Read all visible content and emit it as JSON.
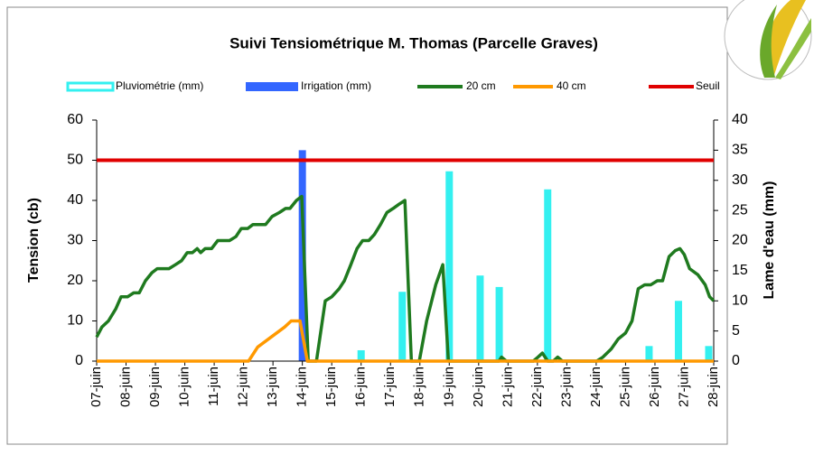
{
  "chart_data": {
    "type": "combo",
    "title": "Suivi Tensiométrique M. Thomas (Parcelle Graves)",
    "y_label": "Tension (cb)",
    "y2_label": "Lame d'eau (mm)",
    "xlim": [
      0,
      21
    ],
    "xticks": [
      {
        "value": 0,
        "label": "07-juin"
      },
      {
        "value": 1,
        "label": "08-juin"
      },
      {
        "value": 2,
        "label": "09-juin"
      },
      {
        "value": 3,
        "label": "10-juin"
      },
      {
        "value": 4,
        "label": "11-juin"
      },
      {
        "value": 5,
        "label": "12-juin"
      },
      {
        "value": 6,
        "label": "13-juin"
      },
      {
        "value": 7,
        "label": "14-juin"
      },
      {
        "value": 8,
        "label": "15-juin"
      },
      {
        "value": 9,
        "label": "16-juin"
      },
      {
        "value": 10,
        "label": "17-juin"
      },
      {
        "value": 11,
        "label": "18-juin"
      },
      {
        "value": 12,
        "label": "19-juin"
      },
      {
        "value": 13,
        "label": "20-juin"
      },
      {
        "value": 14,
        "label": "21-juin"
      },
      {
        "value": 15,
        "label": "22-juin"
      },
      {
        "value": 16,
        "label": "23-juin"
      },
      {
        "value": 17,
        "label": "24-juin"
      },
      {
        "value": 18,
        "label": "25-juin"
      },
      {
        "value": 19,
        "label": "26-juin"
      },
      {
        "value": 20,
        "label": "27-juin"
      },
      {
        "value": 21,
        "label": "28-juin"
      }
    ],
    "ylim": [
      0,
      60
    ],
    "yticks": [
      0,
      10,
      20,
      30,
      40,
      50,
      60
    ],
    "y2lim": [
      0,
      40
    ],
    "y2ticks": [
      0,
      5,
      10,
      15,
      20,
      25,
      30,
      35,
      40
    ],
    "grid": false,
    "series": [
      {
        "name": "Pluviométrie (mm)",
        "type": "bar",
        "axis": "y2",
        "color": "#33f0f0",
        "x": [
          9,
          10.4,
          12,
          13.05,
          13.7,
          15.35,
          18.8,
          19.8,
          20.83
        ],
        "values": [
          1.8,
          11.5,
          31.5,
          14.2,
          12.3,
          28.5,
          2.5,
          10,
          2.5
        ]
      },
      {
        "name": "Irrigation (mm)",
        "type": "bar",
        "axis": "y2",
        "color": "#3366ff",
        "x": [
          7
        ],
        "values": [
          35
        ]
      },
      {
        "name": "20 cm",
        "type": "line",
        "color": "#1f7a1f",
        "x": [
          0,
          0.18,
          0.4,
          0.65,
          0.83,
          1.05,
          1.26,
          1.45,
          1.66,
          1.88,
          2.06,
          2.28,
          2.46,
          2.68,
          2.89,
          3.08,
          3.26,
          3.42,
          3.54,
          3.69,
          3.91,
          4.12,
          4.31,
          4.52,
          4.74,
          4.92,
          5.14,
          5.32,
          5.54,
          5.75,
          5.97,
          6.22,
          6.43,
          6.58,
          6.8,
          6.98,
          7.2,
          7.48,
          7.78,
          8,
          8.25,
          8.43,
          8.65,
          8.86,
          9.05,
          9.26,
          9.45,
          9.66,
          9.88,
          10.09,
          10.28,
          10.49,
          10.71,
          10.98,
          11.23,
          11.54,
          11.78,
          11.97,
          13.69,
          13.78,
          13.94,
          14.86,
          15.02,
          15.17,
          15.35,
          15.54,
          15.69,
          15.85,
          17.02,
          17.23,
          17.51,
          17.75,
          18,
          18.22,
          18.43,
          18.65,
          18.86,
          19.08,
          19.26,
          19.48,
          19.69,
          19.85,
          20,
          20.18,
          20.46,
          20.71,
          20.86,
          21
        ],
        "values": [
          6,
          8.5,
          10,
          13,
          16,
          16,
          17,
          17,
          20,
          22,
          23,
          23,
          23,
          24,
          25,
          27,
          27,
          28,
          27,
          28,
          28,
          30,
          30,
          30,
          31,
          33,
          33,
          34,
          34,
          34,
          36,
          37,
          38,
          38,
          40,
          41,
          0,
          0,
          15,
          16,
          18,
          20,
          24,
          28,
          30,
          30,
          31.5,
          34,
          37,
          38,
          39,
          40,
          0,
          0,
          10,
          19,
          24,
          0,
          0,
          1,
          0,
          0,
          1,
          2,
          0,
          0,
          1,
          0,
          0,
          1,
          3,
          5.5,
          7,
          10,
          18,
          19,
          19,
          20,
          20,
          26,
          27.5,
          28,
          26.5,
          23,
          21.5,
          19,
          16,
          15
        ]
      },
      {
        "name": "40 cm",
        "type": "line",
        "color": "#ff9900",
        "x": [
          0,
          5.17,
          5.48,
          5.94,
          6.4,
          6.62,
          6.92,
          7.17,
          21
        ],
        "values": [
          0,
          0,
          3.5,
          6,
          8.5,
          10,
          10,
          0,
          0
        ]
      },
      {
        "name": "Seuil",
        "type": "line",
        "color": "#e00000",
        "x": [
          0,
          21
        ],
        "values": [
          50,
          50
        ]
      }
    ]
  }
}
